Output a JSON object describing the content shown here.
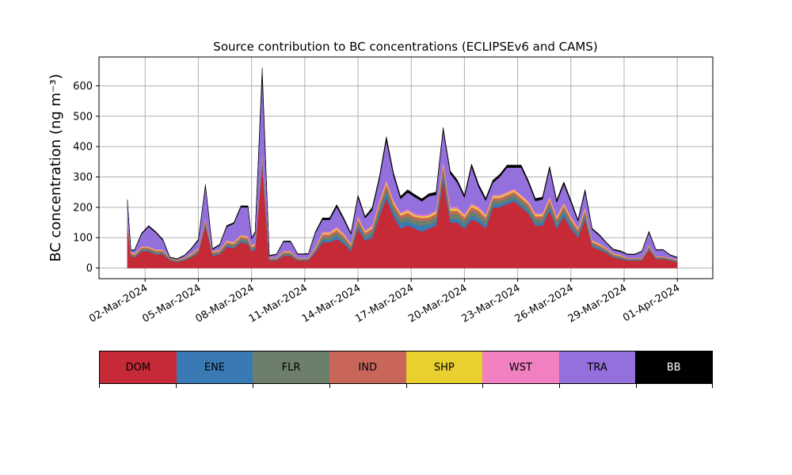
{
  "chart_data": {
    "type": "area",
    "stacked": true,
    "title": "Source contribution to BC concentrations (ECLIPSEv6 and CAMS)",
    "ylabel": "BC concentration (ng m⁻³)",
    "xlabel": "",
    "ylim": [
      -35,
      695
    ],
    "xlim_days": [
      -1.6,
      33.0
    ],
    "x_start": "2024-03-01",
    "yticks": [
      0,
      100,
      200,
      300,
      400,
      500,
      600
    ],
    "xtick_labels": [
      "02-Mar-2024",
      "05-Mar-2024",
      "08-Mar-2024",
      "11-Mar-2024",
      "14-Mar-2024",
      "17-Mar-2024",
      "20-Mar-2024",
      "23-Mar-2024",
      "26-Mar-2024",
      "29-Mar-2024",
      "01-Apr-2024"
    ],
    "xtick_days": [
      1,
      4,
      7,
      10,
      13,
      16,
      19,
      22,
      25,
      28,
      31
    ],
    "grid": true,
    "legend_placement": "bottom colorbar",
    "x_days": [
      0.0,
      0.2,
      0.4,
      0.8,
      1.2,
      1.6,
      2.0,
      2.4,
      2.8,
      3.2,
      3.6,
      4.0,
      4.4,
      4.8,
      5.2,
      5.6,
      6.0,
      6.4,
      6.8,
      7.0,
      7.2,
      7.6,
      8.0,
      8.4,
      8.8,
      9.2,
      9.6,
      9.9,
      10.2,
      10.6,
      11.0,
      11.4,
      11.8,
      12.2,
      12.6,
      13.0,
      13.4,
      13.8,
      14.2,
      14.6,
      15.0,
      15.4,
      15.8,
      16.2,
      16.6,
      17.0,
      17.4,
      17.8,
      18.2,
      18.6,
      19.0,
      19.4,
      19.8,
      20.2,
      20.6,
      21.0,
      21.4,
      21.8,
      22.2,
      22.6,
      23.0,
      23.4,
      23.8,
      24.2,
      24.6,
      25.0,
      25.4,
      25.8,
      26.2,
      26.6,
      27.0,
      27.4,
      27.8,
      28.2,
      28.6,
      29.0,
      29.4,
      29.8,
      30.2,
      30.6,
      31.0
    ],
    "x_note": "x values are days since 2024-03-01 00:00",
    "series": [
      {
        "name": "DOM",
        "color": "#c62a36",
        "values": [
          130,
          40,
          35,
          55,
          55,
          45,
          45,
          25,
          20,
          25,
          35,
          50,
          140,
          40,
          45,
          70,
          65,
          85,
          80,
          55,
          60,
          340,
          25,
          25,
          40,
          40,
          25,
          25,
          25,
          50,
          85,
          85,
          95,
          80,
          55,
          130,
          90,
          100,
          170,
          230,
          170,
          130,
          140,
          130,
          120,
          130,
          140,
          290,
          150,
          150,
          130,
          160,
          150,
          130,
          200,
          200,
          210,
          220,
          200,
          180,
          140,
          140,
          190,
          130,
          170,
          130,
          100,
          160,
          70,
          60,
          50,
          35,
          30,
          25,
          25,
          25,
          60,
          30,
          30,
          25,
          20
        ]
      },
      {
        "name": "ENE",
        "color": "#3a7ab4",
        "values": [
          5,
          2,
          2,
          3,
          3,
          3,
          3,
          2,
          2,
          2,
          2,
          3,
          5,
          3,
          3,
          4,
          4,
          5,
          5,
          4,
          4,
          10,
          2,
          2,
          3,
          3,
          2,
          2,
          2,
          4,
          8,
          8,
          10,
          8,
          6,
          10,
          8,
          10,
          12,
          15,
          14,
          18,
          15,
          14,
          20,
          12,
          12,
          15,
          12,
          12,
          12,
          14,
          13,
          12,
          10,
          10,
          10,
          10,
          10,
          10,
          10,
          10,
          12,
          10,
          12,
          10,
          8,
          10,
          5,
          5,
          4,
          3,
          3,
          2,
          2,
          2,
          4,
          2,
          2,
          2,
          2
        ]
      },
      {
        "name": "FLR",
        "color": "#6b7f6b",
        "values": [
          8,
          4,
          4,
          5,
          5,
          5,
          5,
          3,
          3,
          3,
          4,
          5,
          8,
          5,
          5,
          6,
          6,
          8,
          8,
          6,
          6,
          15,
          3,
          3,
          5,
          5,
          3,
          3,
          3,
          6,
          10,
          10,
          12,
          10,
          8,
          12,
          10,
          12,
          15,
          18,
          16,
          15,
          16,
          15,
          15,
          15,
          16,
          20,
          16,
          16,
          15,
          16,
          16,
          15,
          12,
          12,
          12,
          12,
          12,
          12,
          12,
          12,
          14,
          12,
          14,
          12,
          10,
          12,
          6,
          6,
          5,
          4,
          4,
          3,
          3,
          3,
          5,
          3,
          3,
          3,
          3
        ]
      },
      {
        "name": "IND",
        "color": "#c8665a",
        "values": [
          6,
          3,
          3,
          4,
          4,
          4,
          4,
          2,
          2,
          2,
          3,
          4,
          6,
          4,
          4,
          5,
          5,
          6,
          6,
          5,
          5,
          10,
          2,
          2,
          4,
          4,
          2,
          2,
          2,
          5,
          8,
          8,
          9,
          8,
          6,
          10,
          8,
          9,
          12,
          14,
          12,
          10,
          11,
          10,
          10,
          10,
          11,
          14,
          11,
          11,
          10,
          11,
          11,
          10,
          9,
          9,
          9,
          9,
          9,
          9,
          9,
          9,
          10,
          9,
          10,
          9,
          8,
          9,
          5,
          5,
          4,
          3,
          3,
          2,
          2,
          2,
          4,
          2,
          2,
          2,
          2
        ]
      },
      {
        "name": "SHP",
        "color": "#e8d030",
        "values": [
          3,
          2,
          2,
          2,
          2,
          2,
          2,
          1,
          1,
          1,
          2,
          2,
          3,
          2,
          2,
          3,
          3,
          3,
          3,
          3,
          3,
          5,
          1,
          1,
          2,
          2,
          1,
          1,
          1,
          3,
          4,
          4,
          5,
          4,
          3,
          5,
          4,
          5,
          6,
          7,
          6,
          5,
          6,
          5,
          5,
          5,
          6,
          7,
          6,
          6,
          5,
          6,
          6,
          5,
          5,
          5,
          5,
          5,
          5,
          5,
          5,
          5,
          5,
          5,
          5,
          5,
          4,
          5,
          3,
          3,
          2,
          2,
          2,
          1,
          1,
          1,
          2,
          1,
          1,
          1,
          1
        ]
      },
      {
        "name": "WST",
        "color": "#f080bf",
        "values": [
          3,
          2,
          2,
          2,
          2,
          2,
          2,
          1,
          1,
          1,
          2,
          2,
          3,
          2,
          2,
          3,
          3,
          3,
          3,
          3,
          3,
          5,
          1,
          1,
          2,
          2,
          1,
          1,
          1,
          3,
          4,
          4,
          5,
          4,
          3,
          5,
          4,
          5,
          6,
          7,
          6,
          5,
          6,
          5,
          5,
          5,
          6,
          7,
          6,
          6,
          5,
          6,
          6,
          5,
          5,
          5,
          5,
          5,
          5,
          5,
          5,
          5,
          5,
          5,
          5,
          5,
          4,
          5,
          3,
          3,
          2,
          2,
          2,
          1,
          1,
          1,
          2,
          1,
          1,
          1,
          1
        ]
      },
      {
        "name": "TRA",
        "color": "#9370db",
        "values": [
          65,
          5,
          10,
          40,
          65,
          55,
          30,
          0,
          0,
          6,
          14,
          25,
          105,
          5,
          14,
          45,
          60,
          90,
          95,
          20,
          35,
          245,
          6,
          10,
          30,
          30,
          11,
          11,
          12,
          45,
          40,
          40,
          65,
          45,
          30,
          60,
          40,
          50,
          70,
          130,
          80,
          45,
          55,
          55,
          45,
          60,
          50,
          100,
          110,
          80,
          55,
          120,
          65,
          45,
          40,
          60,
          80,
          70,
          90,
          60,
          40,
          45,
          90,
          45,
          60,
          45,
          20,
          50,
          35,
          25,
          15,
          10,
          10,
          10,
          10,
          20,
          40,
          20,
          20,
          8,
          5
        ]
      },
      {
        "name": "BB",
        "color": "#000000",
        "values": [
          5,
          2,
          2,
          4,
          4,
          4,
          4,
          2,
          2,
          2,
          3,
          4,
          6,
          3,
          3,
          4,
          4,
          5,
          5,
          4,
          4,
          30,
          2,
          2,
          3,
          3,
          2,
          2,
          2,
          4,
          6,
          6,
          8,
          6,
          5,
          8,
          6,
          8,
          9,
          12,
          10,
          8,
          9,
          8,
          8,
          8,
          9,
          10,
          9,
          9,
          8,
          10,
          9,
          8,
          8,
          8,
          8,
          8,
          8,
          8,
          8,
          8,
          9,
          8,
          8,
          8,
          6,
          8,
          4,
          4,
          3,
          3,
          3,
          2,
          2,
          2,
          4,
          2,
          2,
          2,
          2
        ]
      }
    ]
  },
  "legend": [
    {
      "label": "DOM",
      "color": "#c62a36",
      "text_color": "#000000"
    },
    {
      "label": "ENE",
      "color": "#3a7ab4",
      "text_color": "#000000"
    },
    {
      "label": "FLR",
      "color": "#6b7f6b",
      "text_color": "#000000"
    },
    {
      "label": "IND",
      "color": "#c8665a",
      "text_color": "#000000"
    },
    {
      "label": "SHP",
      "color": "#e8d030",
      "text_color": "#000000"
    },
    {
      "label": "WST",
      "color": "#f080bf",
      "text_color": "#000000"
    },
    {
      "label": "TRA",
      "color": "#9370db",
      "text_color": "#000000"
    },
    {
      "label": "BB",
      "color": "#000000",
      "text_color": "#ffffff"
    }
  ]
}
